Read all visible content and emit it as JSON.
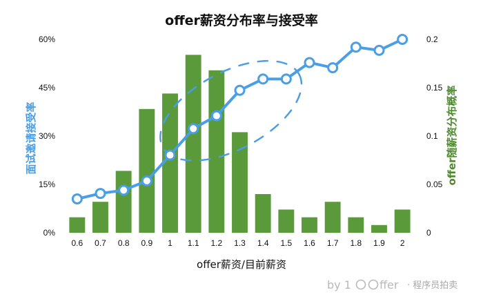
{
  "chart_data": {
    "type": "bar",
    "title": "offer薪资分布率与接受率",
    "xlabel": "offer薪资/目前薪资",
    "categories": [
      "0.6",
      "0.7",
      "0.8",
      "0.9",
      "1",
      "1.1",
      "1.2",
      "1.3",
      "1.4",
      "1.5",
      "1.6",
      "1.7",
      "1.8",
      "1.9",
      "2"
    ],
    "series": [
      {
        "type": "bar",
        "axis": "right",
        "values": [
          0.016,
          0.032,
          0.064,
          0.128,
          0.144,
          0.184,
          0.168,
          0.104,
          0.04,
          0.024,
          0.016,
          0.032,
          0.016,
          0.008,
          0.024
        ]
      },
      {
        "type": "line",
        "axis": "left",
        "values": [
          10.5,
          12.2,
          13.2,
          16.1,
          24.1,
          32.3,
          36.3,
          44.2,
          47.7,
          47.7,
          52.8,
          51.2,
          57.6,
          56.6,
          60.0
        ]
      }
    ],
    "y_left": {
      "label": "面试邀请接受率",
      "ylim": [
        0,
        60
      ],
      "ticks": [
        "0%",
        "15%",
        "30%",
        "45%",
        "60%"
      ],
      "tick_values": [
        0,
        15,
        30,
        45,
        60
      ]
    },
    "y_right": {
      "label": "offer随薪资分布概率",
      "ylim": [
        0,
        0.2
      ],
      "ticks": [
        "0",
        "0.05",
        "0.1",
        "0.15",
        "0.2"
      ],
      "tick_values": [
        0,
        0.05,
        0.1,
        0.15,
        0.2
      ]
    },
    "grid": false,
    "annotation": "dashed ellipse around 1.0–1.5",
    "colors": {
      "bar": "#5b9a3b",
      "line": "#4a9ee6",
      "marker_fill": "#ffffff"
    }
  },
  "watermark": {
    "prefix": "by 1",
    "brand": "ffer",
    "suffix": "· 程序员拍卖"
  }
}
